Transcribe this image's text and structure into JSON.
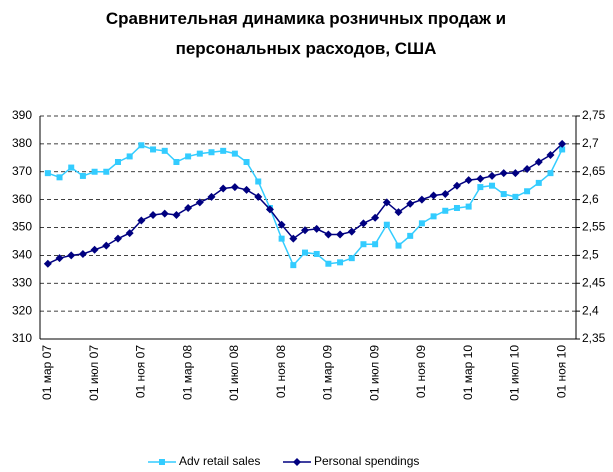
{
  "chart_data": {
    "type": "line",
    "title": "Сравнительная динамика розничных продаж и персональных расходов, США",
    "categories": [
      "01 мар 07",
      null,
      null,
      null,
      "01 июл 07",
      null,
      null,
      null,
      "01 ноя 07",
      null,
      null,
      null,
      "01 мар 08",
      null,
      null,
      null,
      "01 июл 08",
      null,
      null,
      null,
      "01 ноя 08",
      null,
      null,
      null,
      "01 мар 09",
      null,
      null,
      null,
      "01 июл 09",
      null,
      null,
      null,
      "01 ноя 09",
      null,
      null,
      null,
      "01 мар 10",
      null,
      null,
      null,
      "01 июл 10",
      null,
      null,
      null,
      "01 ноя 10"
    ],
    "series": [
      {
        "name": "Adv retail sales",
        "color": "#33ccff",
        "values": [
          369.5,
          368,
          371.5,
          368.5,
          370,
          370,
          373.5,
          375.5,
          379.5,
          378,
          377.5,
          373.5,
          375.5,
          376.5,
          377,
          377.5,
          376.5,
          373.5,
          366.5,
          357,
          346,
          336.5,
          341,
          340.5,
          337,
          337.5,
          339,
          344,
          344,
          351,
          343.5,
          347,
          351.5,
          354,
          356,
          357,
          357.5,
          364.5,
          365,
          362,
          361,
          363,
          366,
          369.5,
          378
        ]
      },
      {
        "name": "Personal spendings",
        "color": "#000080",
        "axis": "y2",
        "values": [
          2.485,
          2.495,
          2.5,
          2.5025,
          2.51,
          2.5175,
          2.53,
          2.54,
          2.5625,
          2.5725,
          2.575,
          2.5725,
          2.585,
          2.595,
          2.605,
          2.62,
          2.6225,
          2.6175,
          2.605,
          2.5825,
          2.555,
          2.53,
          2.545,
          2.5475,
          2.5375,
          2.5375,
          2.5425,
          2.5575,
          2.5675,
          2.595,
          2.5775,
          2.5925,
          2.6,
          2.6075,
          2.61,
          2.625,
          2.635,
          2.6375,
          2.6425,
          2.6475,
          2.6475,
          2.655,
          2.6675,
          2.68,
          2.7
        ]
      }
    ],
    "ylim": [
      310,
      390
    ],
    "yticks": [
      310,
      320,
      330,
      340,
      350,
      360,
      370,
      380,
      390
    ],
    "y2lim": [
      2.35,
      2.75
    ],
    "y2ticks": [
      {
        "value": 2.35,
        "label": "2,35"
      },
      {
        "value": 2.4,
        "label": "2,4"
      },
      {
        "value": 2.45,
        "label": "2,45"
      },
      {
        "value": 2.5,
        "label": "2,5"
      },
      {
        "value": 2.55,
        "label": "2,55"
      },
      {
        "value": 2.6,
        "label": "2,6"
      },
      {
        "value": 2.65,
        "label": "2,65"
      },
      {
        "value": 2.7,
        "label": "2,7"
      },
      {
        "value": 2.75,
        "label": "2,75"
      }
    ],
    "grid": true,
    "legend": "bottom"
  }
}
